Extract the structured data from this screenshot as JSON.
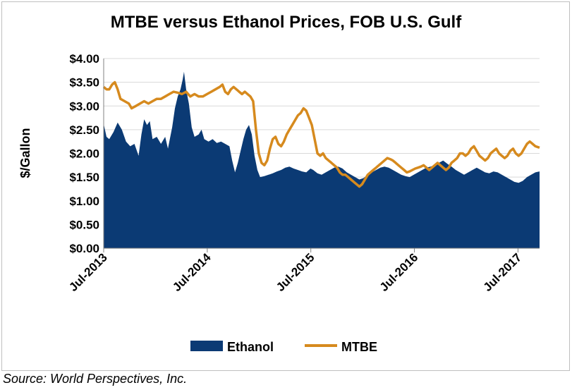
{
  "chart_data": {
    "type": "area",
    "title": "MTBE versus Ethanol Prices, FOB U.S. Gulf",
    "ylabel": "$/Gallon",
    "xlabel": "",
    "ylim": [
      0,
      4
    ],
    "yticks": [
      "$0.00",
      "$0.50",
      "$1.00",
      "$1.50",
      "$2.00",
      "$2.50",
      "$3.00",
      "$3.50",
      "$4.00"
    ],
    "xticks": [
      "Jul-2013",
      "Jul-2014",
      "Jul-2015",
      "Jul-2016",
      "Jul-2017"
    ],
    "x_start": "Jul-2013",
    "legend_position": "bottom",
    "grid": true,
    "series": [
      {
        "name": "Ethanol",
        "kind": "area",
        "color": "#0b3a74",
        "points": [
          [
            0,
            2.62
          ],
          [
            0.2,
            2.35
          ],
          [
            0.4,
            2.3
          ],
          [
            0.7,
            2.45
          ],
          [
            1,
            2.65
          ],
          [
            1.3,
            2.5
          ],
          [
            1.6,
            2.25
          ],
          [
            1.9,
            2.15
          ],
          [
            2.2,
            2.2
          ],
          [
            2.5,
            1.95
          ],
          [
            2.7,
            2.4
          ],
          [
            2.9,
            2.72
          ],
          [
            3.1,
            2.6
          ],
          [
            3.3,
            2.68
          ],
          [
            3.5,
            2.3
          ],
          [
            3.8,
            2.35
          ],
          [
            4.1,
            2.2
          ],
          [
            4.4,
            2.35
          ],
          [
            4.6,
            2.1
          ],
          [
            4.9,
            2.55
          ],
          [
            5.1,
            2.95
          ],
          [
            5.3,
            3.2
          ],
          [
            5.5,
            3.35
          ],
          [
            5.65,
            3.55
          ],
          [
            5.75,
            3.72
          ],
          [
            5.9,
            3.35
          ],
          [
            6.1,
            3.05
          ],
          [
            6.3,
            2.55
          ],
          [
            6.5,
            2.35
          ],
          [
            6.8,
            2.4
          ],
          [
            7.0,
            2.5
          ],
          [
            7.2,
            2.3
          ],
          [
            7.5,
            2.25
          ],
          [
            7.8,
            2.3
          ],
          [
            8.1,
            2.22
          ],
          [
            8.4,
            2.25
          ],
          [
            8.7,
            2.2
          ],
          [
            9.0,
            2.15
          ],
          [
            9.2,
            1.85
          ],
          [
            9.4,
            1.6
          ],
          [
            9.6,
            1.8
          ],
          [
            9.8,
            2.05
          ],
          [
            10.0,
            2.3
          ],
          [
            10.2,
            2.5
          ],
          [
            10.4,
            2.6
          ],
          [
            10.6,
            2.4
          ],
          [
            10.8,
            1.95
          ],
          [
            11.0,
            1.65
          ],
          [
            11.2,
            1.5
          ],
          [
            11.5,
            1.52
          ],
          [
            11.8,
            1.55
          ],
          [
            12.1,
            1.58
          ],
          [
            12.4,
            1.62
          ],
          [
            12.7,
            1.65
          ],
          [
            13.0,
            1.7
          ],
          [
            13.3,
            1.72
          ],
          [
            13.6,
            1.68
          ],
          [
            13.9,
            1.65
          ],
          [
            14.2,
            1.62
          ],
          [
            14.5,
            1.6
          ],
          [
            14.8,
            1.68
          ],
          [
            15.0,
            1.65
          ],
          [
            15.3,
            1.58
          ],
          [
            15.6,
            1.55
          ],
          [
            15.9,
            1.6
          ],
          [
            16.2,
            1.65
          ],
          [
            16.5,
            1.7
          ],
          [
            16.8,
            1.72
          ],
          [
            17.1,
            1.68
          ],
          [
            17.4,
            1.6
          ],
          [
            17.7,
            1.55
          ],
          [
            18.0,
            1.5
          ],
          [
            18.3,
            1.45
          ],
          [
            18.6,
            1.48
          ],
          [
            18.9,
            1.55
          ],
          [
            19.2,
            1.6
          ],
          [
            19.5,
            1.65
          ],
          [
            19.8,
            1.7
          ],
          [
            20.1,
            1.72
          ],
          [
            20.4,
            1.7
          ],
          [
            20.7,
            1.65
          ],
          [
            21.0,
            1.6
          ],
          [
            21.3,
            1.55
          ],
          [
            21.6,
            1.52
          ],
          [
            21.9,
            1.5
          ],
          [
            22.2,
            1.55
          ],
          [
            22.5,
            1.6
          ],
          [
            22.8,
            1.65
          ],
          [
            23.1,
            1.7
          ],
          [
            23.4,
            1.72
          ],
          [
            23.7,
            1.75
          ],
          [
            24.0,
            1.8
          ],
          [
            24.3,
            1.85
          ],
          [
            24.6,
            1.78
          ],
          [
            24.9,
            1.72
          ],
          [
            25.2,
            1.65
          ],
          [
            25.5,
            1.6
          ],
          [
            25.8,
            1.55
          ],
          [
            26.1,
            1.6
          ],
          [
            26.4,
            1.65
          ],
          [
            26.7,
            1.7
          ],
          [
            27.0,
            1.65
          ],
          [
            27.3,
            1.6
          ],
          [
            27.6,
            1.58
          ],
          [
            27.9,
            1.62
          ],
          [
            28.2,
            1.6
          ],
          [
            28.5,
            1.55
          ],
          [
            28.8,
            1.5
          ],
          [
            29.1,
            1.45
          ],
          [
            29.4,
            1.4
          ],
          [
            29.7,
            1.38
          ],
          [
            30.0,
            1.42
          ],
          [
            30.3,
            1.5
          ],
          [
            30.6,
            1.55
          ],
          [
            30.9,
            1.6
          ],
          [
            31.2,
            1.62
          ]
        ]
      },
      {
        "name": "MTBE",
        "kind": "line",
        "color": "#d68a1e",
        "points": [
          [
            0,
            3.4
          ],
          [
            0.2,
            3.35
          ],
          [
            0.4,
            3.35
          ],
          [
            0.6,
            3.45
          ],
          [
            0.8,
            3.5
          ],
          [
            1.0,
            3.35
          ],
          [
            1.2,
            3.15
          ],
          [
            1.5,
            3.1
          ],
          [
            1.8,
            3.05
          ],
          [
            2.0,
            2.95
          ],
          [
            2.3,
            3.0
          ],
          [
            2.6,
            3.05
          ],
          [
            2.9,
            3.1
          ],
          [
            3.2,
            3.05
          ],
          [
            3.5,
            3.1
          ],
          [
            3.8,
            3.15
          ],
          [
            4.1,
            3.15
          ],
          [
            4.4,
            3.2
          ],
          [
            4.7,
            3.25
          ],
          [
            5.0,
            3.3
          ],
          [
            5.3,
            3.28
          ],
          [
            5.6,
            3.25
          ],
          [
            5.9,
            3.3
          ],
          [
            6.2,
            3.2
          ],
          [
            6.5,
            3.25
          ],
          [
            6.8,
            3.2
          ],
          [
            7.1,
            3.2
          ],
          [
            7.4,
            3.25
          ],
          [
            7.7,
            3.3
          ],
          [
            8.0,
            3.35
          ],
          [
            8.3,
            3.4
          ],
          [
            8.5,
            3.45
          ],
          [
            8.7,
            3.3
          ],
          [
            8.9,
            3.25
          ],
          [
            9.1,
            3.35
          ],
          [
            9.3,
            3.4
          ],
          [
            9.5,
            3.35
          ],
          [
            9.7,
            3.3
          ],
          [
            9.9,
            3.25
          ],
          [
            10.1,
            3.3
          ],
          [
            10.3,
            3.25
          ],
          [
            10.5,
            3.2
          ],
          [
            10.7,
            3.1
          ],
          [
            10.9,
            2.5
          ],
          [
            11.1,
            2.0
          ],
          [
            11.3,
            1.8
          ],
          [
            11.5,
            1.75
          ],
          [
            11.7,
            1.85
          ],
          [
            11.9,
            2.1
          ],
          [
            12.1,
            2.3
          ],
          [
            12.3,
            2.35
          ],
          [
            12.5,
            2.2
          ],
          [
            12.7,
            2.15
          ],
          [
            12.9,
            2.25
          ],
          [
            13.1,
            2.4
          ],
          [
            13.3,
            2.5
          ],
          [
            13.5,
            2.6
          ],
          [
            13.7,
            2.7
          ],
          [
            13.9,
            2.8
          ],
          [
            14.1,
            2.85
          ],
          [
            14.3,
            2.95
          ],
          [
            14.5,
            2.9
          ],
          [
            14.7,
            2.75
          ],
          [
            14.9,
            2.6
          ],
          [
            15.1,
            2.3
          ],
          [
            15.3,
            2.0
          ],
          [
            15.5,
            1.95
          ],
          [
            15.7,
            2.0
          ],
          [
            15.9,
            1.9
          ],
          [
            16.1,
            1.85
          ],
          [
            16.3,
            1.8
          ],
          [
            16.5,
            1.75
          ],
          [
            16.7,
            1.7
          ],
          [
            16.9,
            1.6
          ],
          [
            17.1,
            1.55
          ],
          [
            17.3,
            1.55
          ],
          [
            17.5,
            1.5
          ],
          [
            17.7,
            1.45
          ],
          [
            17.9,
            1.4
          ],
          [
            18.1,
            1.35
          ],
          [
            18.3,
            1.3
          ],
          [
            18.5,
            1.35
          ],
          [
            18.7,
            1.45
          ],
          [
            18.9,
            1.55
          ],
          [
            19.1,
            1.6
          ],
          [
            19.3,
            1.65
          ],
          [
            19.5,
            1.7
          ],
          [
            19.7,
            1.75
          ],
          [
            19.9,
            1.8
          ],
          [
            20.1,
            1.85
          ],
          [
            20.3,
            1.9
          ],
          [
            20.5,
            1.88
          ],
          [
            20.7,
            1.85
          ],
          [
            20.9,
            1.8
          ],
          [
            21.1,
            1.75
          ],
          [
            21.3,
            1.7
          ],
          [
            21.5,
            1.65
          ],
          [
            21.7,
            1.6
          ],
          [
            21.9,
            1.62
          ],
          [
            22.1,
            1.65
          ],
          [
            22.3,
            1.68
          ],
          [
            22.5,
            1.7
          ],
          [
            22.7,
            1.72
          ],
          [
            22.9,
            1.75
          ],
          [
            23.1,
            1.7
          ],
          [
            23.3,
            1.65
          ],
          [
            23.5,
            1.7
          ],
          [
            23.7,
            1.75
          ],
          [
            23.9,
            1.8
          ],
          [
            24.1,
            1.75
          ],
          [
            24.3,
            1.7
          ],
          [
            24.5,
            1.65
          ],
          [
            24.7,
            1.7
          ],
          [
            24.9,
            1.8
          ],
          [
            25.1,
            1.85
          ],
          [
            25.3,
            1.9
          ],
          [
            25.5,
            2.0
          ],
          [
            25.7,
            2.0
          ],
          [
            25.9,
            1.95
          ],
          [
            26.1,
            2.0
          ],
          [
            26.3,
            2.1
          ],
          [
            26.5,
            2.15
          ],
          [
            26.7,
            2.05
          ],
          [
            26.9,
            1.95
          ],
          [
            27.1,
            1.9
          ],
          [
            27.3,
            1.85
          ],
          [
            27.5,
            1.9
          ],
          [
            27.7,
            2.0
          ],
          [
            27.9,
            2.05
          ],
          [
            28.1,
            2.1
          ],
          [
            28.3,
            2.0
          ],
          [
            28.5,
            1.95
          ],
          [
            28.7,
            1.9
          ],
          [
            28.9,
            1.95
          ],
          [
            29.1,
            2.05
          ],
          [
            29.3,
            2.1
          ],
          [
            29.5,
            2.0
          ],
          [
            29.7,
            1.95
          ],
          [
            29.9,
            2.0
          ],
          [
            30.1,
            2.1
          ],
          [
            30.3,
            2.2
          ],
          [
            30.5,
            2.25
          ],
          [
            30.7,
            2.2
          ],
          [
            30.9,
            2.15
          ],
          [
            31.2,
            2.12
          ]
        ]
      }
    ]
  },
  "footer": {
    "source": "Source: World Perspectives, Inc."
  }
}
